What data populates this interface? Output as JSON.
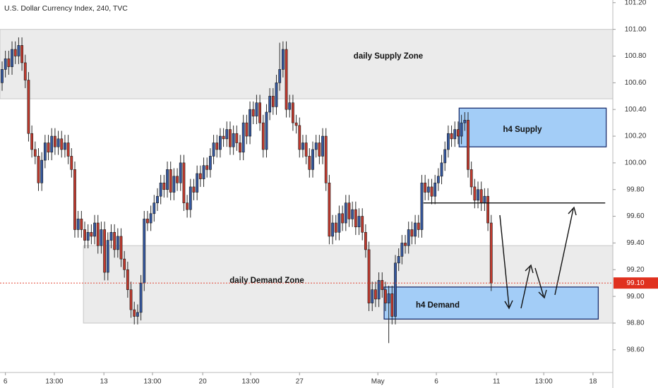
{
  "chart_data": {
    "type": "candlestick",
    "title": "U.S. Dollar Currency Index, 240, TVC",
    "up_color": "#3558a0",
    "down_color": "#c23a2e",
    "open": [
      100.6,
      100.7,
      100.78,
      100.72,
      100.85,
      100.8,
      100.88,
      100.75,
      100.62,
      100.22,
      100.1,
      100.05,
      99.85,
      100.02,
      100.15,
      100.08,
      100.2,
      100.12,
      100.18,
      100.1,
      100.15,
      100.05,
      99.95,
      99.5,
      99.58,
      99.5,
      99.42,
      99.48,
      99.45,
      99.55,
      99.38,
      99.5,
      99.18,
      99.42,
      99.48,
      99.35,
      99.45,
      99.28,
      99.2,
      99.05,
      98.9,
      98.85,
      98.88,
      99.1,
      99.58,
      99.55,
      99.62,
      99.7,
      99.75,
      99.85,
      99.8,
      99.95,
      99.78,
      99.9,
      99.85,
      100.0,
      99.7,
      99.65,
      99.82,
      99.78,
      99.92,
      99.88,
      99.98,
      99.95,
      100.05,
      100.15,
      100.1,
      100.2,
      100.18,
      100.25,
      100.12,
      100.22,
      100.15,
      100.08,
      100.3,
      100.2,
      100.4,
      100.35,
      100.45,
      100.3,
      100.1,
      100.38,
      100.5,
      100.42,
      100.6,
      100.7,
      100.85,
      100.4,
      100.45,
      100.3,
      100.28,
      100.1,
      100.15,
      100.05,
      99.95,
      100.1,
      100.15,
      100.05,
      100.2,
      99.85,
      99.45,
      99.55,
      99.48,
      99.62,
      99.55,
      99.7,
      99.58,
      99.65,
      99.52,
      99.6,
      99.48,
      99.35,
      98.95,
      99.05,
      98.98,
      99.12,
      99.05,
      98.95,
      99.02,
      98.85,
      99.25,
      99.3,
      99.4,
      99.38,
      99.5,
      99.45,
      99.55,
      99.5,
      99.85,
      99.78,
      99.82,
      99.75,
      99.85,
      99.9,
      100.0,
      100.1,
      100.22,
      100.18,
      100.25,
      100.2,
      100.3,
      100.32,
      99.95,
      99.82,
      99.72,
      99.8,
      99.7,
      99.75,
      99.55
    ],
    "high": [
      100.76,
      100.84,
      100.84,
      100.91,
      100.91,
      100.94,
      100.94,
      100.81,
      100.68,
      100.28,
      100.16,
      100.11,
      100.08,
      100.21,
      100.21,
      100.26,
      100.26,
      100.24,
      100.24,
      100.21,
      100.21,
      100.11,
      100.01,
      99.64,
      99.64,
      99.56,
      99.54,
      99.54,
      99.61,
      99.61,
      99.56,
      99.56,
      99.48,
      99.54,
      99.54,
      99.51,
      99.51,
      99.34,
      99.26,
      99.11,
      98.96,
      98.94,
      99.16,
      99.64,
      99.64,
      99.68,
      99.76,
      99.81,
      99.91,
      99.91,
      100.01,
      100.01,
      99.96,
      99.96,
      100.06,
      100.06,
      99.76,
      99.88,
      99.88,
      99.98,
      99.98,
      100.04,
      100.04,
      100.11,
      100.21,
      100.21,
      100.26,
      100.26,
      100.31,
      100.31,
      100.28,
      100.28,
      100.21,
      100.36,
      100.36,
      100.46,
      100.46,
      100.51,
      100.51,
      100.36,
      100.44,
      100.56,
      100.56,
      100.66,
      100.9,
      100.91,
      100.91,
      100.51,
      100.51,
      100.36,
      100.34,
      100.21,
      100.21,
      100.11,
      100.16,
      100.21,
      100.21,
      100.26,
      100.26,
      99.91,
      99.61,
      99.61,
      99.68,
      99.68,
      99.76,
      99.76,
      99.71,
      99.71,
      99.66,
      99.66,
      99.54,
      99.41,
      99.11,
      99.11,
      99.18,
      99.18,
      99.11,
      99.08,
      99.08,
      99.31,
      99.36,
      99.46,
      99.46,
      99.56,
      99.56,
      99.61,
      99.61,
      99.91,
      99.91,
      99.88,
      99.88,
      99.91,
      99.96,
      100.06,
      100.16,
      100.28,
      100.28,
      100.31,
      100.31,
      100.36,
      100.38,
      100.38,
      100.01,
      99.88,
      99.86,
      99.86,
      99.81,
      99.81,
      99.61
    ],
    "low": [
      100.54,
      100.64,
      100.66,
      100.66,
      100.74,
      100.74,
      100.69,
      100.56,
      100.16,
      100.04,
      99.99,
      99.79,
      99.79,
      99.96,
      100.02,
      100.02,
      100.06,
      100.06,
      100.04,
      100.04,
      99.99,
      99.89,
      99.44,
      99.44,
      99.44,
      99.36,
      99.36,
      99.39,
      99.39,
      99.32,
      99.32,
      99.12,
      99.12,
      99.36,
      99.29,
      99.29,
      99.22,
      99.14,
      98.99,
      98.84,
      98.79,
      98.79,
      98.82,
      99.04,
      99.49,
      99.49,
      99.56,
      99.64,
      99.69,
      99.74,
      99.74,
      99.72,
      99.72,
      99.79,
      99.79,
      99.64,
      99.59,
      99.59,
      99.72,
      99.72,
      99.82,
      99.82,
      99.89,
      99.89,
      99.99,
      100.04,
      100.04,
      100.12,
      100.12,
      100.06,
      100.06,
      100.09,
      100.02,
      100.02,
      100.14,
      100.14,
      100.29,
      100.29,
      100.24,
      100.04,
      100.04,
      100.32,
      100.36,
      100.36,
      100.54,
      100.64,
      100.34,
      100.34,
      100.24,
      100.22,
      100.04,
      100.04,
      99.99,
      99.89,
      99.89,
      100.04,
      99.99,
      99.99,
      99.79,
      99.39,
      99.39,
      99.42,
      99.42,
      99.49,
      99.49,
      99.52,
      99.52,
      99.46,
      99.46,
      99.42,
      99.29,
      98.89,
      98.89,
      98.92,
      98.92,
      98.99,
      98.89,
      98.65,
      98.79,
      98.79,
      99.19,
      99.24,
      99.32,
      99.32,
      99.39,
      99.39,
      99.44,
      99.44,
      99.72,
      99.72,
      99.69,
      99.69,
      99.79,
      99.84,
      99.94,
      100.04,
      100.12,
      100.12,
      100.14,
      100.14,
      100.24,
      99.89,
      99.76,
      99.66,
      99.66,
      99.64,
      99.64,
      99.49,
      99.04
    ],
    "close": [
      100.7,
      100.78,
      100.72,
      100.85,
      100.8,
      100.88,
      100.75,
      100.62,
      100.22,
      100.1,
      100.05,
      99.85,
      100.02,
      100.15,
      100.08,
      100.2,
      100.12,
      100.18,
      100.1,
      100.15,
      100.05,
      99.95,
      99.5,
      99.58,
      99.5,
      99.42,
      99.48,
      99.45,
      99.55,
      99.38,
      99.5,
      99.18,
      99.42,
      99.48,
      99.35,
      99.45,
      99.28,
      99.2,
      99.05,
      98.9,
      98.85,
      98.88,
      99.1,
      99.58,
      99.55,
      99.62,
      99.7,
      99.75,
      99.85,
      99.8,
      99.95,
      99.78,
      99.9,
      99.85,
      100.0,
      99.7,
      99.65,
      99.82,
      99.78,
      99.92,
      99.88,
      99.98,
      99.95,
      100.05,
      100.15,
      100.1,
      100.2,
      100.18,
      100.25,
      100.12,
      100.22,
      100.15,
      100.08,
      100.3,
      100.2,
      100.4,
      100.35,
      100.45,
      100.3,
      100.1,
      100.38,
      100.5,
      100.42,
      100.6,
      100.7,
      100.85,
      100.4,
      100.45,
      100.3,
      100.28,
      100.1,
      100.15,
      100.05,
      99.95,
      100.1,
      100.15,
      100.05,
      100.2,
      99.85,
      99.45,
      99.55,
      99.48,
      99.62,
      99.55,
      99.7,
      99.58,
      99.65,
      99.52,
      99.6,
      99.48,
      99.35,
      98.95,
      99.05,
      98.98,
      99.12,
      99.05,
      98.95,
      99.02,
      98.85,
      99.25,
      99.3,
      99.4,
      99.38,
      99.5,
      99.45,
      99.55,
      99.5,
      99.85,
      99.78,
      99.82,
      99.75,
      99.85,
      99.9,
      100.0,
      100.1,
      100.22,
      100.18,
      100.25,
      100.2,
      100.3,
      100.32,
      99.95,
      99.82,
      99.72,
      99.8,
      99.7,
      99.75,
      99.55,
      99.1
    ],
    "xlim": [
      -0.64,
      184.8
    ],
    "xticks": [
      {
        "value": 1,
        "label": "6"
      },
      {
        "value": 15.8,
        "label": "13:00"
      },
      {
        "value": 30.8,
        "label": "13"
      },
      {
        "value": 45.5,
        "label": "13:00"
      },
      {
        "value": 60.7,
        "label": "20"
      },
      {
        "value": 75.2,
        "label": "13:00"
      },
      {
        "value": 90,
        "label": "27"
      },
      {
        "value": 113.7,
        "label": "May"
      },
      {
        "value": 131.4,
        "label": "6"
      },
      {
        "value": 149.6,
        "label": "11"
      },
      {
        "value": 163.9,
        "label": "13:00"
      },
      {
        "value": 178.8,
        "label": "18"
      }
    ],
    "ylim": [
      98.43,
      101.22
    ],
    "yticks": [
      {
        "value": 98.6,
        "label": "98.60"
      },
      {
        "value": 98.8,
        "label": "98.80"
      },
      {
        "value": 99.0,
        "label": "99.00"
      },
      {
        "value": 99.2,
        "label": "99.20"
      },
      {
        "value": 99.4,
        "label": "99.40"
      },
      {
        "value": 99.6,
        "label": "99.60"
      },
      {
        "value": 99.8,
        "label": "99.80"
      },
      {
        "value": 100.0,
        "label": "100.00"
      },
      {
        "value": 100.2,
        "label": "100.20"
      },
      {
        "value": 100.4,
        "label": "100.40"
      },
      {
        "value": 100.6,
        "label": "100.60"
      },
      {
        "value": 100.8,
        "label": "100.80"
      },
      {
        "value": 101.0,
        "label": "101.00"
      },
      {
        "value": 101.2,
        "label": "101.20"
      }
    ],
    "zones": [
      {
        "label": "daily Supply Zone",
        "top": 101.0,
        "bottom": 100.48,
        "start": -0.64,
        "end": 184.8,
        "color": "#ebebeb",
        "border": "#c8c8c8"
      },
      {
        "label": "daily Demand Zone",
        "top": 99.38,
        "bottom": 98.8,
        "start": 24.6,
        "end": 184.8,
        "color": "#ebebeb",
        "border": "#c8c8c8"
      },
      {
        "label": "h4 Supply",
        "top": 100.41,
        "bottom": 100.12,
        "start": 138.3,
        "end": 182.8,
        "color": "#a3cdf7",
        "border": "#1b2f6e"
      },
      {
        "label": "h4 Demand",
        "top": 99.07,
        "bottom": 98.83,
        "start": 115.6,
        "end": 180.4,
        "color": "#a3cdf7",
        "border": "#1b2f6e"
      }
    ],
    "level": {
      "value": 99.7,
      "start": 127.5,
      "end": 182.5
    },
    "last_price": {
      "value": 99.1,
      "label": "99.10",
      "color": "#e0301e"
    }
  }
}
